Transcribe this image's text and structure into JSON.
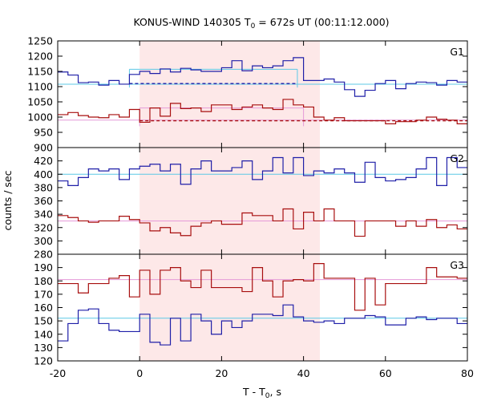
{
  "chart_data": {
    "type": "line",
    "title": "KONUS-WIND 140305 T",
    "title_sub": "0",
    "title_rest": " = 672s UT (00:11:12.000)",
    "xlabel": "T - T",
    "xlabel_sub": "0",
    "xlabel_rest": ", s",
    "ylabel": "counts / sec",
    "xlim": [
      -20,
      80
    ],
    "x_ticks": [
      "-20",
      "0",
      "20",
      "40",
      "60",
      "80"
    ],
    "x_tick_values": [
      -20,
      0,
      20,
      40,
      60,
      80
    ],
    "highlight_interval": [
      0,
      44
    ],
    "colors": {
      "highlight": "#fde8e8",
      "blue": "#1f1fa8",
      "red": "#a80f0f",
      "cyan": "#5cc8e6",
      "pink": "#e59ad8"
    },
    "bin_edges": [
      -20,
      -17.5,
      -15,
      -12.5,
      -10,
      -7.5,
      -5,
      -2.5,
      0,
      2.5,
      5,
      7.5,
      10,
      12.5,
      15,
      17.5,
      20,
      22.5,
      25,
      27.5,
      30,
      32.5,
      35,
      37.5,
      40,
      42.5,
      45,
      47.5,
      50,
      52.5,
      55,
      57.5,
      60,
      62.5,
      65,
      67.5,
      70,
      72.5,
      75,
      77.5,
      80
    ],
    "panels": [
      {
        "label": "G1",
        "ylim": [
          900,
          1250
        ],
        "y_ticks": [
          "900",
          "950",
          "1000",
          "1050",
          "1100",
          "1150",
          "1200",
          "1250"
        ],
        "y_tick_values": [
          900,
          950,
          1000,
          1050,
          1100,
          1150,
          1200,
          1250
        ],
        "series": [
          {
            "color": "blue",
            "values": [
              1148,
              1138,
              1113,
              1115,
              1105,
              1120,
              1108,
              1140,
              1150,
              1143,
              1158,
              1148,
              1160,
              1155,
              1150,
              1150,
              1162,
              1185,
              1152,
              1168,
              1162,
              1168,
              1185,
              1195,
              1120,
              1120,
              1125,
              1115,
              1090,
              1068,
              1088,
              1110,
              1120,
              1093,
              1110,
              1115,
              1113,
              1105,
              1120,
              1115
            ]
          },
          {
            "color": "red",
            "values": [
              1008,
              1015,
              1005,
              1000,
              998,
              1008,
              1000,
              1025,
              983,
              1030,
              1003,
              1045,
              1028,
              1030,
              1018,
              1040,
              1040,
              1025,
              1033,
              1040,
              1030,
              1025,
              1058,
              1040,
              1033,
              1000,
              990,
              998,
              988,
              988,
              988,
              988,
              978,
              985,
              985,
              990,
              1000,
              993,
              990,
              978
            ]
          }
        ],
        "bg_lines": [
          {
            "color": "cyan",
            "y": 1108,
            "style": "solid",
            "x_range": [
              -20,
              80
            ]
          },
          {
            "color": "pink",
            "y": 990,
            "style": "solid",
            "x_range": [
              -20,
              80
            ]
          },
          {
            "color": "cyan",
            "y": 1157,
            "style": "solid",
            "x_range": [
              -2.5,
              38.5
            ],
            "box": true
          },
          {
            "color": "blue",
            "y": 1110,
            "style": "dashed",
            "x_range": [
              -2.5,
              38.5
            ]
          },
          {
            "color": "pink",
            "y": 1030,
            "style": "solid",
            "x_range": [
              0,
              40
            ],
            "box": true
          },
          {
            "color": "red",
            "y": 988,
            "style": "dashed",
            "x_range": [
              0,
              80
            ]
          }
        ]
      },
      {
        "label": "G2",
        "ylim": [
          280,
          440
        ],
        "y_ticks": [
          "280",
          "300",
          "320",
          "340",
          "360",
          "380",
          "400",
          "420"
        ],
        "y_tick_values": [
          280,
          300,
          320,
          340,
          360,
          380,
          400,
          420
        ],
        "series": [
          {
            "color": "blue",
            "values": [
              390,
              383,
              395,
              408,
              405,
              408,
              392,
              408,
              412,
              415,
              405,
              415,
              385,
              408,
              420,
              405,
              405,
              410,
              420,
              392,
              405,
              425,
              402,
              425,
              398,
              405,
              402,
              408,
              402,
              388,
              418,
              395,
              390,
              392,
              395,
              408,
              425,
              383,
              425,
              410
            ]
          },
          {
            "color": "red",
            "values": [
              338,
              335,
              330,
              328,
              330,
              330,
              337,
              332,
              327,
              315,
              320,
              312,
              308,
              322,
              327,
              330,
              325,
              325,
              342,
              338,
              338,
              330,
              348,
              318,
              343,
              330,
              348,
              330,
              330,
              307,
              330,
              330,
              330,
              322,
              330,
              322,
              332,
              320,
              324,
              318
            ]
          }
        ],
        "bg_lines": [
          {
            "color": "cyan",
            "y": 400,
            "style": "solid",
            "x_range": [
              -20,
              80
            ]
          },
          {
            "color": "pink",
            "y": 330,
            "style": "solid",
            "x_range": [
              -20,
              80
            ]
          }
        ]
      },
      {
        "label": "G3",
        "ylim": [
          120,
          200
        ],
        "y_ticks": [
          "120",
          "130",
          "140",
          "150",
          "160",
          "170",
          "180",
          "190"
        ],
        "y_tick_values": [
          120,
          130,
          140,
          150,
          160,
          170,
          180,
          190
        ],
        "series": [
          {
            "color": "blue",
            "values": [
              135,
              148,
              158,
              159,
              148,
              143,
              142,
              142,
              155,
              134,
              132,
              152,
              135,
              155,
              150,
              140,
              150,
              145,
              150,
              155,
              155,
              154,
              162,
              153,
              150,
              149,
              150,
              148,
              152,
              152,
              154,
              153,
              147,
              147,
              152,
              153,
              151,
              152,
              152,
              148
            ]
          },
          {
            "color": "red",
            "values": [
              178,
              178,
              171,
              178,
              178,
              182,
              184,
              168,
              188,
              170,
              188,
              190,
              180,
              175,
              188,
              175,
              175,
              175,
              172,
              190,
              180,
              168,
              180,
              181,
              180,
              193,
              182,
              182,
              182,
              158,
              182,
              162,
              178,
              178,
              178,
              178,
              190,
              183,
              183,
              182
            ]
          }
        ],
        "bg_lines": [
          {
            "color": "cyan",
            "y": 152,
            "style": "solid",
            "x_range": [
              -20,
              80
            ]
          },
          {
            "color": "pink",
            "y": 181,
            "style": "solid",
            "x_range": [
              -20,
              80
            ]
          }
        ]
      }
    ]
  }
}
